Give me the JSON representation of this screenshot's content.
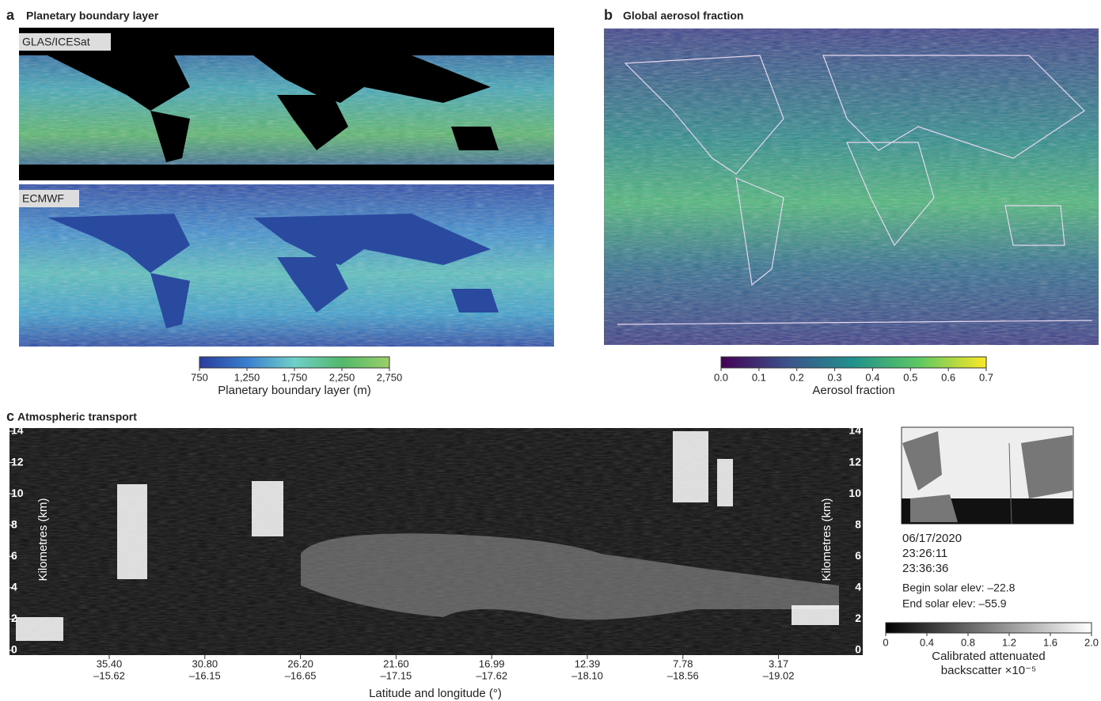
{
  "panels": [
    {
      "letter": "a",
      "title": "Planetary boundary layer",
      "maps": [
        "GLAS/ICESat",
        "ECMWF"
      ],
      "colorbar": {
        "ticks": [
          750,
          {
            "value": 1250,
            "label": "1,250"
          },
          {
            "value": 1750,
            "label": "1,750"
          },
          {
            "value": 2250,
            "label": "2,250"
          },
          {
            "value": 2750,
            "label": "2,750"
          }
        ],
        "label": "Planetary boundary layer (m)",
        "colors": [
          "#2a3c9e",
          "#3a7fd0",
          "#6fd0c8",
          "#52b86a",
          "#9ad06a"
        ]
      }
    },
    {
      "letter": "b",
      "title": "Global aerosol fraction",
      "colorbar": {
        "ticks": [
          {
            "value": 0,
            "label": "0.0"
          },
          0.1,
          0.2,
          0.3,
          0.4,
          0.5,
          0.6,
          0.7
        ],
        "label": "Aerosol fraction",
        "colors": [
          "#440154",
          "#3b528b",
          "#21918c",
          "#5ec962",
          "#fde725"
        ]
      }
    },
    {
      "letter": "c",
      "title": "Atmospheric transport",
      "y_label": "Kilometres (km)",
      "ylim": [
        0,
        14
      ],
      "yticks": [
        0,
        2,
        4,
        6,
        8,
        10,
        12,
        14
      ],
      "x_ticks": [
        [
          "35.40",
          "–15.62"
        ],
        [
          "30.80",
          "–16.15"
        ],
        [
          "26.20",
          "–16.65"
        ],
        [
          "21.60",
          "–17.15"
        ],
        [
          "16.99",
          "–17.62"
        ],
        [
          "12.39",
          "–18.10"
        ],
        [
          "7.78",
          "–18.56"
        ],
        [
          "3.17",
          "–19.02"
        ]
      ],
      "x_label": "Latitude and longitude (°)",
      "info": [
        "06/17/2020",
        "23:26:11",
        "23:36:36",
        "Begin solar elev: –22.8",
        "End solar elev: –55.9"
      ],
      "colorbar": {
        "ticks": [
          0,
          0.4,
          0.8,
          1.2,
          1.6,
          {
            "value": 2,
            "label": "2.0"
          }
        ],
        "label": [
          "Calibrated attenuated",
          "backscatter ×10⁻⁵"
        ],
        "colors": [
          "#000000",
          "#ffffff"
        ]
      }
    }
  ]
}
